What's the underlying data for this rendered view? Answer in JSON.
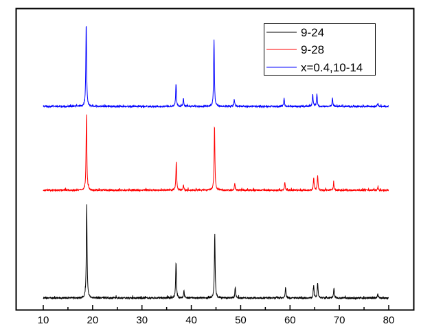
{
  "chart_data": {
    "type": "line",
    "title": "",
    "xlabel": "",
    "ylabel": "",
    "xlim": [
      10,
      80
    ],
    "ylim": [
      0,
      439
    ],
    "x_ticks": [
      "10",
      "20",
      "30",
      "40",
      "50",
      "60",
      "70",
      "80"
    ],
    "y_ticks": [],
    "grid": false,
    "legend_position": "top-right",
    "series": [
      {
        "name": "9-24",
        "color": "#000000",
        "offset": 17,
        "peaks": [
          [
            18.8,
            137
          ],
          [
            36.9,
            53
          ],
          [
            38.5,
            11
          ],
          [
            44.75,
            94
          ],
          [
            48.9,
            16
          ],
          [
            59.1,
            16
          ],
          [
            64.8,
            19
          ],
          [
            65.6,
            22
          ],
          [
            68.9,
            15
          ],
          [
            77.8,
            6
          ]
        ]
      },
      {
        "name": "9-28",
        "color": "#ff0000",
        "offset": 174,
        "peaks": [
          [
            18.75,
            112
          ],
          [
            36.95,
            42
          ],
          [
            38.4,
            7
          ],
          [
            44.7,
            95
          ],
          [
            48.8,
            11
          ],
          [
            58.95,
            12
          ],
          [
            64.8,
            19
          ],
          [
            65.6,
            21
          ],
          [
            68.85,
            11
          ],
          [
            77.8,
            4
          ]
        ]
      },
      {
        "name": "x=0.4,10-14",
        "color": "#0000ff",
        "offset": 296,
        "peaks": [
          [
            18.7,
            122
          ],
          [
            36.9,
            33
          ],
          [
            38.4,
            12
          ],
          [
            44.6,
            98
          ],
          [
            48.7,
            11
          ],
          [
            58.8,
            12
          ],
          [
            64.6,
            18
          ],
          [
            65.45,
            19
          ],
          [
            68.6,
            12
          ],
          [
            77.8,
            4
          ]
        ]
      }
    ]
  }
}
